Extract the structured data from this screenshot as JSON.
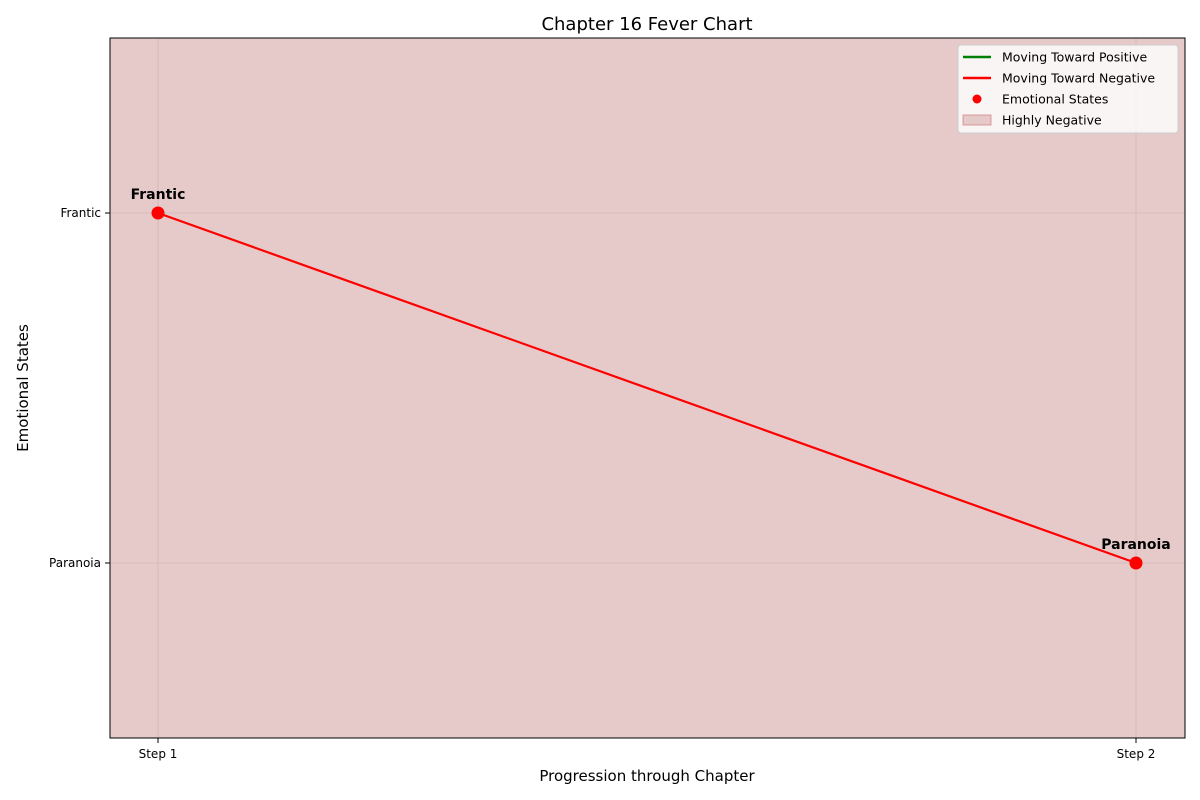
{
  "chart_data": {
    "type": "line",
    "title": "Chapter 16 Fever Chart",
    "xlabel": "Progression through Chapter",
    "ylabel": "Emotional States",
    "categories": [
      "Step 1",
      "Step 2"
    ],
    "y_categories": [
      "Paranoia",
      "Frantic"
    ],
    "points": [
      {
        "x": "Step 1",
        "y": "Frantic",
        "label": "Frantic"
      },
      {
        "x": "Step 2",
        "y": "Paranoia",
        "label": "Paranoia"
      }
    ],
    "segments": [
      {
        "from": "Step 1",
        "to": "Step 2",
        "direction": "negative"
      }
    ],
    "background_region": {
      "name": "Highly Negative",
      "color": "#cc6666"
    },
    "legend": [
      {
        "label": "Moving Toward Positive",
        "kind": "line",
        "color": "#008000"
      },
      {
        "label": "Moving Toward Negative",
        "kind": "line",
        "color": "#ff0000"
      },
      {
        "label": "Emotional States",
        "kind": "marker",
        "color": "#ff0000"
      },
      {
        "label": "Highly Negative",
        "kind": "patch",
        "color": "#cc6666"
      }
    ],
    "legend_position": "top-right",
    "grid": true,
    "colors": {
      "positive": "#008000",
      "negative": "#ff0000",
      "marker": "#ff0000"
    }
  }
}
